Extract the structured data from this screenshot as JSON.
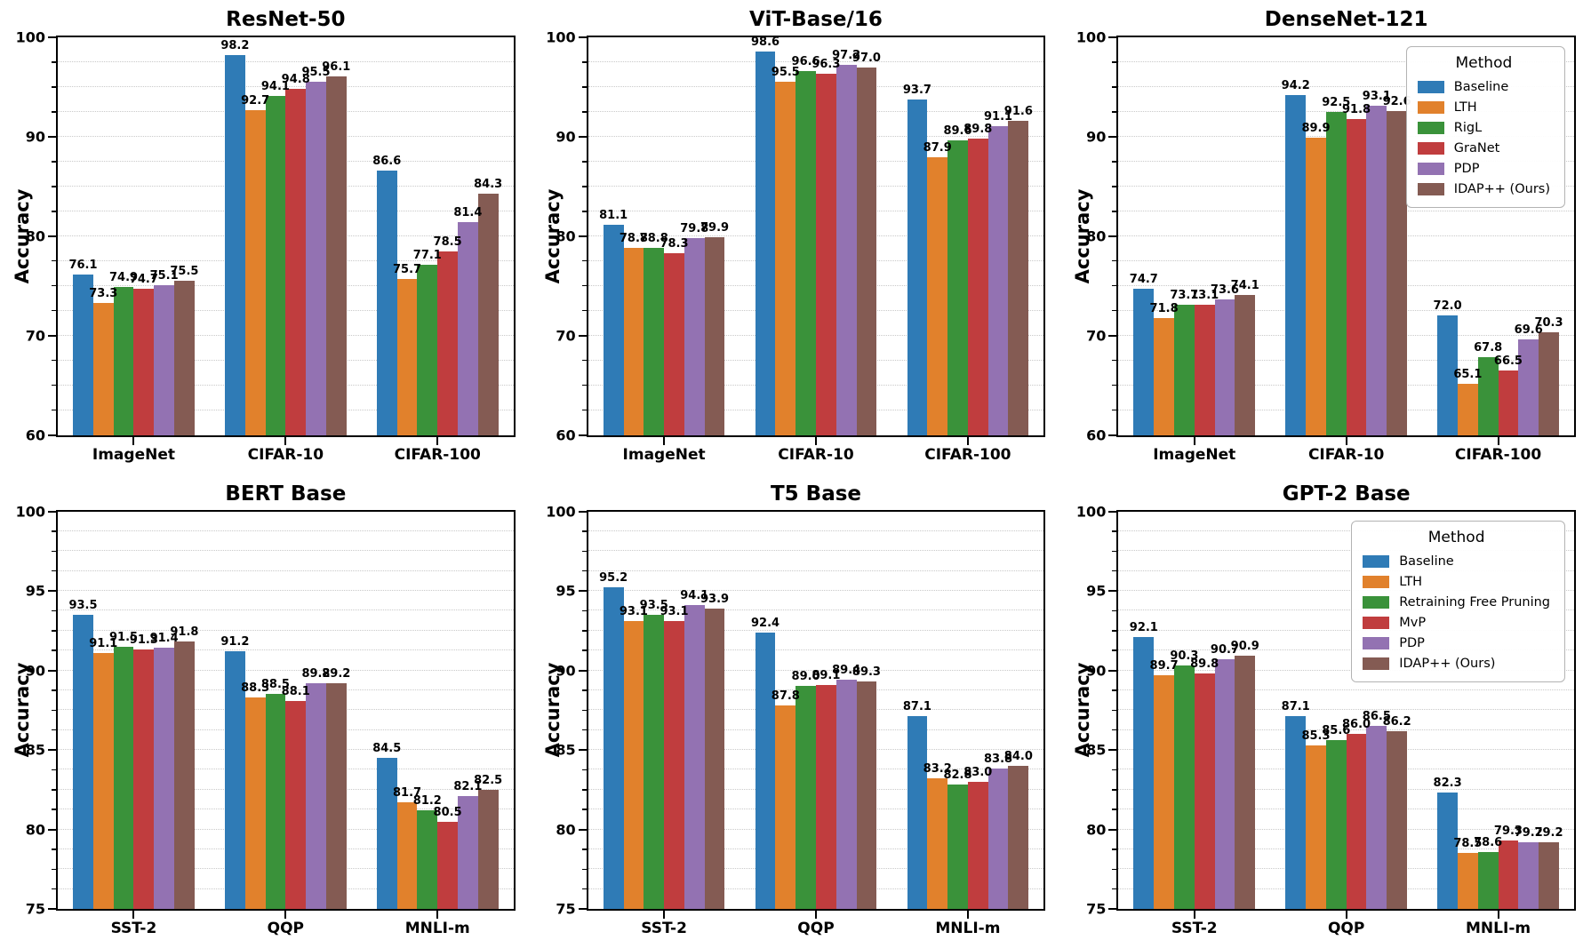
{
  "figure": {
    "background": "#ffffff"
  },
  "palette": [
    "#2f7bb6",
    "#e1812c",
    "#3a923a",
    "#c03d3e",
    "#9372b2",
    "#845b53"
  ],
  "chart_data": [
    {
      "type": "bar",
      "title": "ResNet-50",
      "ylabel": "Accuracy",
      "categories": [
        "ImageNet",
        "CIFAR-10",
        "CIFAR-100"
      ],
      "ylim": [
        60,
        100
      ],
      "yticks": [
        60,
        70,
        80,
        90,
        100
      ],
      "minor_step": 2.5,
      "grid": "dotted-horizontal",
      "legend_visible": false,
      "legend_title": "Method",
      "series": [
        {
          "name": "Baseline",
          "color": "#2f7bb6",
          "values": [
            76.1,
            98.2,
            86.6
          ]
        },
        {
          "name": "LTH",
          "color": "#e1812c",
          "values": [
            73.3,
            92.7,
            75.7
          ]
        },
        {
          "name": "RigL",
          "color": "#3a923a",
          "values": [
            74.9,
            94.1,
            77.1
          ]
        },
        {
          "name": "GraNet",
          "color": "#c03d3e",
          "values": [
            74.7,
            94.8,
            78.5
          ]
        },
        {
          "name": "PDP",
          "color": "#9372b2",
          "values": [
            75.1,
            95.5,
            81.4
          ]
        },
        {
          "name": "IDAP++ (Ours)",
          "color": "#845b53",
          "values": [
            75.5,
            96.1,
            84.3
          ]
        }
      ]
    },
    {
      "type": "bar",
      "title": "ViT-Base/16",
      "ylabel": "Accuracy",
      "categories": [
        "ImageNet",
        "CIFAR-10",
        "CIFAR-100"
      ],
      "ylim": [
        60,
        100
      ],
      "yticks": [
        60,
        70,
        80,
        90,
        100
      ],
      "minor_step": 2.5,
      "grid": "dotted-horizontal",
      "legend_visible": false,
      "legend_title": "Method",
      "series": [
        {
          "name": "Baseline",
          "color": "#2f7bb6",
          "values": [
            81.1,
            98.6,
            93.7
          ]
        },
        {
          "name": "LTH",
          "color": "#e1812c",
          "values": [
            78.8,
            95.5,
            87.9
          ]
        },
        {
          "name": "RigL",
          "color": "#3a923a",
          "values": [
            78.8,
            96.6,
            89.6
          ]
        },
        {
          "name": "GraNet",
          "color": "#c03d3e",
          "values": [
            78.3,
            96.3,
            89.8
          ]
        },
        {
          "name": "PDP",
          "color": "#9372b2",
          "values": [
            79.8,
            97.2,
            91.1
          ]
        },
        {
          "name": "IDAP++ (Ours)",
          "color": "#845b53",
          "values": [
            79.9,
            97.0,
            91.6
          ]
        }
      ]
    },
    {
      "type": "bar",
      "title": "DenseNet-121",
      "ylabel": "Accuracy",
      "categories": [
        "ImageNet",
        "CIFAR-10",
        "CIFAR-100"
      ],
      "ylim": [
        60,
        100
      ],
      "yticks": [
        60,
        70,
        80,
        90,
        100
      ],
      "minor_step": 2.5,
      "grid": "dotted-horizontal",
      "legend_visible": true,
      "legend_title": "Method",
      "series": [
        {
          "name": "Baseline",
          "color": "#2f7bb6",
          "values": [
            74.7,
            94.2,
            72.0
          ]
        },
        {
          "name": "LTH",
          "color": "#e1812c",
          "values": [
            71.8,
            89.9,
            65.1
          ]
        },
        {
          "name": "RigL",
          "color": "#3a923a",
          "values": [
            73.1,
            92.5,
            67.8
          ]
        },
        {
          "name": "GraNet",
          "color": "#c03d3e",
          "values": [
            73.1,
            91.8,
            66.5
          ]
        },
        {
          "name": "PDP",
          "color": "#9372b2",
          "values": [
            73.6,
            93.1,
            69.6
          ]
        },
        {
          "name": "IDAP++ (Ours)",
          "color": "#845b53",
          "values": [
            74.1,
            92.6,
            70.3
          ]
        }
      ]
    },
    {
      "type": "bar",
      "title": "BERT Base",
      "ylabel": "Accuracy",
      "categories": [
        "SST-2",
        "QQP",
        "MNLI-m"
      ],
      "ylim": [
        75,
        100
      ],
      "yticks": [
        75,
        80,
        85,
        90,
        95,
        100
      ],
      "minor_step": 1.25,
      "grid": "dotted-horizontal",
      "legend_visible": false,
      "legend_title": "Method",
      "series": [
        {
          "name": "Baseline",
          "color": "#2f7bb6",
          "values": [
            93.5,
            91.2,
            84.5
          ]
        },
        {
          "name": "LTH",
          "color": "#e1812c",
          "values": [
            91.1,
            88.3,
            81.7
          ]
        },
        {
          "name": "Retraining Free Pruning",
          "color": "#3a923a",
          "values": [
            91.5,
            88.5,
            81.2
          ]
        },
        {
          "name": "MvP",
          "color": "#c03d3e",
          "values": [
            91.3,
            88.1,
            80.5
          ]
        },
        {
          "name": "PDP",
          "color": "#9372b2",
          "values": [
            91.4,
            89.2,
            82.1
          ]
        },
        {
          "name": "IDAP++ (Ours)",
          "color": "#845b53",
          "values": [
            91.8,
            89.2,
            82.5
          ]
        }
      ]
    },
    {
      "type": "bar",
      "title": "T5 Base",
      "ylabel": "Accuracy",
      "categories": [
        "SST-2",
        "QQP",
        "MNLI-m"
      ],
      "ylim": [
        75,
        100
      ],
      "yticks": [
        75,
        80,
        85,
        90,
        95,
        100
      ],
      "minor_step": 1.25,
      "grid": "dotted-horizontal",
      "legend_visible": false,
      "legend_title": "Method",
      "series": [
        {
          "name": "Baseline",
          "color": "#2f7bb6",
          "values": [
            95.2,
            92.4,
            87.1
          ]
        },
        {
          "name": "LTH",
          "color": "#e1812c",
          "values": [
            93.1,
            87.8,
            83.2
          ]
        },
        {
          "name": "Retraining Free Pruning",
          "color": "#3a923a",
          "values": [
            93.5,
            89.0,
            82.8
          ]
        },
        {
          "name": "MvP",
          "color": "#c03d3e",
          "values": [
            93.1,
            89.1,
            83.0
          ]
        },
        {
          "name": "PDP",
          "color": "#9372b2",
          "values": [
            94.1,
            89.4,
            83.8
          ]
        },
        {
          "name": "IDAP++ (Ours)",
          "color": "#845b53",
          "values": [
            93.9,
            89.3,
            84.0
          ]
        }
      ]
    },
    {
      "type": "bar",
      "title": "GPT-2 Base",
      "ylabel": "Accuracy",
      "categories": [
        "SST-2",
        "QQP",
        "MNLI-m"
      ],
      "ylim": [
        75,
        100
      ],
      "yticks": [
        75,
        80,
        85,
        90,
        95,
        100
      ],
      "minor_step": 1.25,
      "grid": "dotted-horizontal",
      "legend_visible": true,
      "legend_title": "Method",
      "series": [
        {
          "name": "Baseline",
          "color": "#2f7bb6",
          "values": [
            92.1,
            87.1,
            82.3
          ]
        },
        {
          "name": "LTH",
          "color": "#e1812c",
          "values": [
            89.7,
            85.3,
            78.5
          ]
        },
        {
          "name": "Retraining Free Pruning",
          "color": "#3a923a",
          "values": [
            90.3,
            85.6,
            78.6
          ]
        },
        {
          "name": "MvP",
          "color": "#c03d3e",
          "values": [
            89.8,
            86.0,
            79.3
          ]
        },
        {
          "name": "PDP",
          "color": "#9372b2",
          "values": [
            90.7,
            86.5,
            79.2
          ]
        },
        {
          "name": "IDAP++ (Ours)",
          "color": "#845b53",
          "values": [
            90.9,
            86.2,
            79.2
          ]
        }
      ]
    }
  ]
}
